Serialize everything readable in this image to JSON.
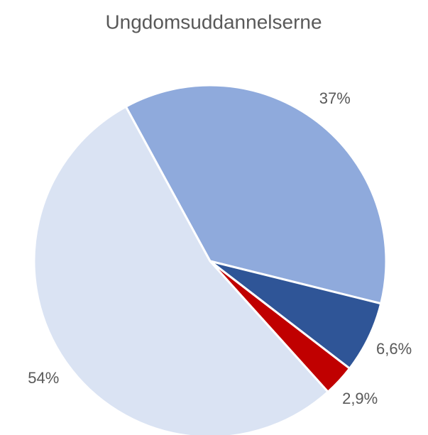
{
  "chart_data": {
    "type": "pie",
    "title": "Ungdomsuddannelserne",
    "values": [
      37,
      6.6,
      2.9,
      54
    ],
    "value_labels": [
      "37%",
      "6,6%",
      "2,9%",
      "54%"
    ],
    "colors": [
      "#8faadc",
      "#2f5597",
      "#c00000",
      "#dae3f3"
    ]
  }
}
